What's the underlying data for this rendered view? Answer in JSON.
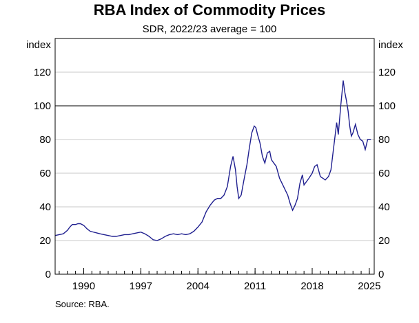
{
  "chart_data": {
    "type": "line",
    "title": "RBA Index of Commodity Prices",
    "subtitle": "SDR, 2022/23 average = 100",
    "ylabel_left": "index",
    "ylabel_right": "index",
    "ylim": [
      0,
      140
    ],
    "yticks": [
      0,
      20,
      40,
      60,
      80,
      100,
      120
    ],
    "reference_line": 100,
    "xlim": [
      1986.5,
      2025.6
    ],
    "xticks": [
      1990,
      1997,
      2004,
      2011,
      2018,
      2025
    ],
    "xtick_labels": [
      "1990",
      "1997",
      "2004",
      "2011",
      "2018",
      "2025"
    ],
    "source": "Source:   RBA.",
    "line_color": "#1f1f8f",
    "series": [
      {
        "name": "RBA Index of Commodity Prices",
        "x": [
          1986.5,
          1987.0,
          1987.5,
          1988.0,
          1988.3,
          1988.6,
          1989.0,
          1989.3,
          1989.6,
          1990.0,
          1990.4,
          1990.8,
          1991.2,
          1991.6,
          1992.0,
          1992.5,
          1993.0,
          1993.5,
          1994.0,
          1994.5,
          1995.0,
          1995.5,
          1996.0,
          1996.5,
          1997.0,
          1997.5,
          1998.0,
          1998.5,
          1999.0,
          1999.5,
          2000.0,
          2000.5,
          2001.0,
          2001.5,
          2002.0,
          2002.5,
          2003.0,
          2003.5,
          2004.0,
          2004.5,
          2005.0,
          2005.5,
          2006.0,
          2006.4,
          2006.8,
          2007.2,
          2007.6,
          2008.0,
          2008.3,
          2008.6,
          2008.8,
          2009.0,
          2009.3,
          2009.6,
          2010.0,
          2010.3,
          2010.6,
          2010.9,
          2011.1,
          2011.3,
          2011.6,
          2011.9,
          2012.2,
          2012.5,
          2012.8,
          2013.0,
          2013.3,
          2013.6,
          2014.0,
          2014.5,
          2015.0,
          2015.3,
          2015.6,
          2015.9,
          2016.2,
          2016.5,
          2016.8,
          2017.0,
          2017.3,
          2017.6,
          2018.0,
          2018.3,
          2018.6,
          2019.0,
          2019.3,
          2019.6,
          2020.0,
          2020.3,
          2020.6,
          2021.0,
          2021.2,
          2021.5,
          2021.8,
          2022.0,
          2022.2,
          2022.4,
          2022.6,
          2022.8,
          2023.0,
          2023.3,
          2023.6,
          2023.9,
          2024.2,
          2024.5,
          2024.8,
          2025.0,
          2025.2
        ],
        "values": [
          23,
          23.5,
          24,
          26,
          28,
          29.5,
          29.5,
          30,
          30,
          29,
          27,
          25.5,
          25,
          24.5,
          24,
          23.5,
          23,
          22.5,
          22.5,
          23,
          23.5,
          23.5,
          24,
          24.5,
          25,
          24,
          22.5,
          20.5,
          20,
          21,
          22.5,
          23.5,
          24,
          23.5,
          24,
          23.5,
          24,
          25.5,
          28,
          31,
          37,
          41,
          44,
          45,
          45,
          47,
          52,
          64,
          70,
          62,
          52,
          45,
          47,
          55,
          65,
          75,
          84,
          88,
          87,
          83,
          78,
          70,
          66,
          72,
          73,
          68,
          66,
          64,
          57,
          52,
          47,
          42,
          38,
          41,
          45,
          54,
          59,
          53,
          55,
          57,
          60,
          64,
          65,
          58,
          57,
          56,
          58,
          62,
          74,
          90,
          83,
          100,
          115,
          108,
          103,
          97,
          88,
          82,
          84,
          89,
          83,
          80,
          79,
          74,
          80,
          80,
          80
        ]
      }
    ]
  }
}
